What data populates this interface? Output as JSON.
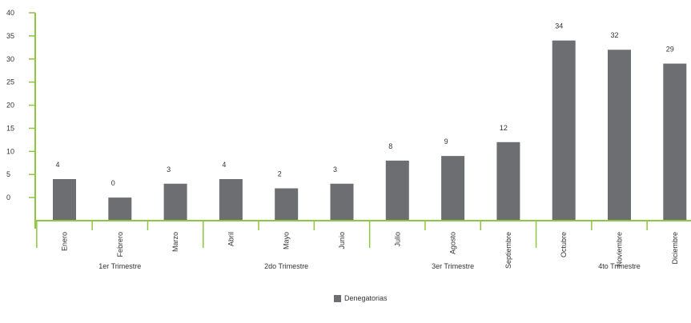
{
  "chart_data": {
    "type": "bar",
    "categories": [
      "Enero",
      "Febrero",
      "Marzo",
      "Abril",
      "Mayo",
      "Junio",
      "Julio",
      "Agosto",
      "Septiembre",
      "Octubre",
      "Noviembre",
      "Diciembre"
    ],
    "series": [
      {
        "name": "Denegatorias",
        "values": [
          4,
          0,
          3,
          4,
          2,
          3,
          8,
          9,
          12,
          34,
          32,
          29
        ]
      }
    ],
    "data_labels": [
      "4",
      "0",
      "3",
      "4",
      "2",
      "3",
      "8",
      "9",
      "12",
      "34",
      "32",
      "29"
    ],
    "y_tick_labels": [
      "0",
      "5",
      "10",
      "15",
      "20",
      "25",
      "30",
      "35",
      "40"
    ],
    "quarters": [
      {
        "label": "1er Trimestre",
        "months": 3
      },
      {
        "label": "2do Trimestre",
        "months": 3
      },
      {
        "label": "3er Trimestre",
        "months": 3
      },
      {
        "label": "4to Trimestre",
        "months": 3
      }
    ],
    "ylim": [
      -5,
      40
    ],
    "grid": false,
    "legend_position": "bottom-center",
    "colors": {
      "bar": "#6d6e71",
      "axis": "#8dc63f",
      "text": "#333333"
    }
  }
}
